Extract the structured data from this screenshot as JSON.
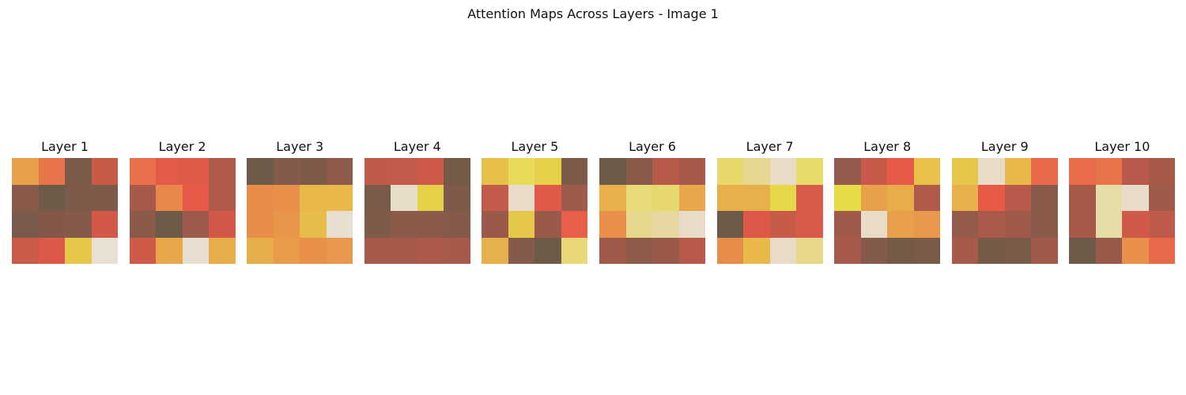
{
  "title": "Attention Maps Across Layers - Image 1",
  "chart_data": {
    "type": "heatmap",
    "title": "Attention Maps Across Layers - Image 1",
    "grid": false,
    "panels": [
      {
        "title": "Layer 1",
        "cells": [
          [
            "#e8a04a",
            "#e8744a",
            "#7a5a48",
            "#c85a48"
          ],
          [
            "#8a5a4a",
            "#6e5a48",
            "#7e5a4a",
            "#7e5a4a"
          ],
          [
            "#7a5a4a",
            "#845848",
            "#865a4a",
            "#d2584a"
          ],
          [
            "#cc5a48",
            "#dc5848",
            "#e6c848",
            "#e8e0d2"
          ]
        ]
      },
      {
        "title": "Layer 2",
        "cells": [
          [
            "#e8704a",
            "#e45a48",
            "#e05a4a",
            "#b05a4a"
          ],
          [
            "#a85a4a",
            "#e8884a",
            "#e85a48",
            "#b05a4a"
          ],
          [
            "#8a5a4a",
            "#6e5a48",
            "#9e5a4a",
            "#d2584a"
          ],
          [
            "#d05a48",
            "#e8a84a",
            "#e8ded0",
            "#e8ae4a"
          ]
        ]
      },
      {
        "title": "Layer 3",
        "cells": [
          [
            "#6e5a48",
            "#845a4a",
            "#7e5a4a",
            "#8e5a4a"
          ],
          [
            "#e88c4a",
            "#e8904a",
            "#e8b84a",
            "#e8b84a"
          ],
          [
            "#e88c4a",
            "#e8964a",
            "#e6bc4a",
            "#e8ded0"
          ],
          [
            "#e6ae4a",
            "#e89c4a",
            "#e8904a",
            "#e8984a"
          ]
        ]
      },
      {
        "title": "Layer 4",
        "cells": [
          [
            "#c05a4a",
            "#c45a4a",
            "#d05a4a",
            "#765a48"
          ],
          [
            "#7a5a48",
            "#e6dcc8",
            "#e6d048",
            "#7e5a4a"
          ],
          [
            "#7e5a4a",
            "#8a5a4a",
            "#8a5a4a",
            "#865a4a"
          ],
          [
            "#a85a4a",
            "#a85a4a",
            "#ac5a4a",
            "#a85a4a"
          ]
        ]
      },
      {
        "title": "Layer 5",
        "cells": [
          [
            "#e6c048",
            "#e6dc5a",
            "#e6d048",
            "#7e5a4a"
          ],
          [
            "#c45a4a",
            "#e8dcc8",
            "#e05a4a",
            "#9e5a4a"
          ],
          [
            "#9a5a4a",
            "#e6c848",
            "#9a5a4a",
            "#e85e48"
          ],
          [
            "#e6b04a",
            "#845a4a",
            "#6e5a48",
            "#e8d87a"
          ]
        ]
      },
      {
        "title": "Layer 6",
        "cells": [
          [
            "#6e5a48",
            "#8a5a4a",
            "#b85a4a",
            "#a85a4a"
          ],
          [
            "#e8b04a",
            "#e6da7a",
            "#e6d86e",
            "#e8a84a"
          ],
          [
            "#e8904a",
            "#e6d88a",
            "#e6d8a0",
            "#e8dcc8"
          ],
          [
            "#a05a4a",
            "#8e5a4a",
            "#9a5a4a",
            "#b85a4a"
          ]
        ]
      },
      {
        "title": "Layer 7",
        "cells": [
          [
            "#e6d86a",
            "#e6d890",
            "#e8dcc8",
            "#e6dc6a"
          ],
          [
            "#e8b04a",
            "#e8b04a",
            "#e6d848",
            "#d85a4a"
          ],
          [
            "#6e5a48",
            "#dc5848",
            "#c85a4a",
            "#d85a4a"
          ],
          [
            "#e88c4a",
            "#e8b848",
            "#e8dcc8",
            "#e8d88a"
          ]
        ]
      },
      {
        "title": "Layer 8",
        "cells": [
          [
            "#945a4a",
            "#c85a4a",
            "#e85a48",
            "#e8c04a"
          ],
          [
            "#e6dc48",
            "#e8a04a",
            "#e8ac4a",
            "#b05a4a"
          ],
          [
            "#a05a4a",
            "#e8dcc8",
            "#e8a04a",
            "#e8984a"
          ],
          [
            "#a85a4a",
            "#845a4a",
            "#765a48",
            "#7a5a48"
          ]
        ]
      },
      {
        "title": "Layer 9",
        "cells": [
          [
            "#e6c848",
            "#e8dcc8",
            "#e8b84a",
            "#e86a4a"
          ],
          [
            "#e8b04a",
            "#e85a48",
            "#b85a4a",
            "#8a5a4a"
          ],
          [
            "#945a4a",
            "#aa5a4a",
            "#a05a4a",
            "#8a5a4a"
          ],
          [
            "#a85a4a",
            "#765a48",
            "#7a5a48",
            "#a05a4a"
          ]
        ]
      },
      {
        "title": "Layer 10",
        "cells": [
          [
            "#e86c4a",
            "#e8744a",
            "#b85a4a",
            "#a85a4a"
          ],
          [
            "#a85a4a",
            "#e6dca8",
            "#e8dcc8",
            "#a05a4a"
          ],
          [
            "#a85a4a",
            "#e6dca8",
            "#d05a4a",
            "#c05a4a"
          ],
          [
            "#6e5a48",
            "#9a5a4a",
            "#e8904a",
            "#e86a4a"
          ]
        ]
      }
    ]
  }
}
